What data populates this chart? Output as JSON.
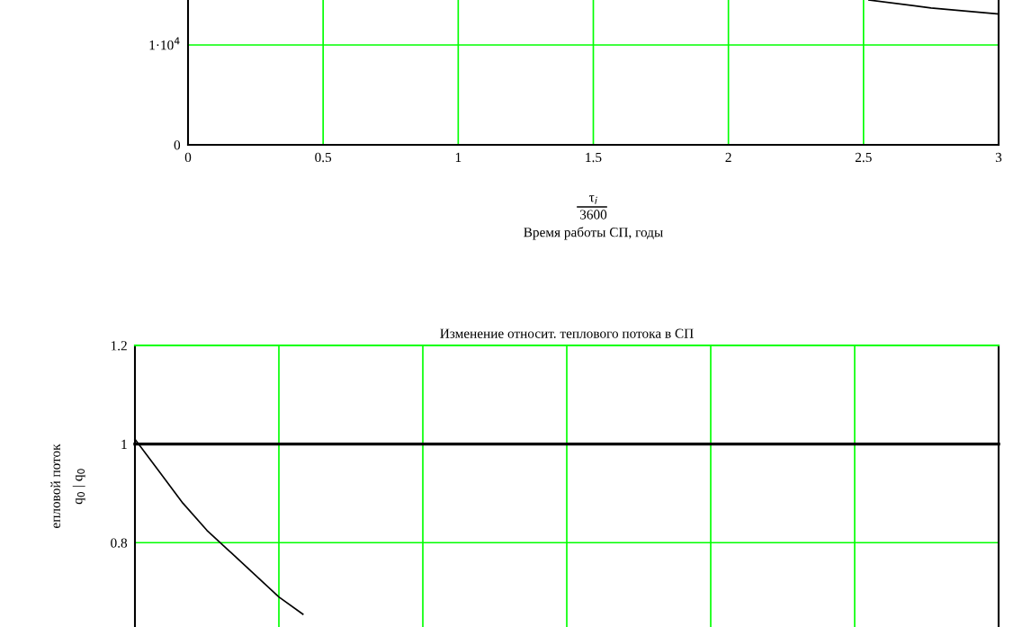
{
  "chart_data": [
    {
      "type": "line",
      "xlabel": "τ$_{i}$\n3600\nВремя работы СП, годы",
      "x": [
        2.52,
        2.75,
        3
      ],
      "values": [
        14500,
        13700,
        13100
      ],
      "color": "#000000",
      "xlim": [
        0,
        3
      ],
      "xticks": [
        0,
        0.5,
        1,
        1.5,
        2,
        2.5,
        3
      ],
      "ylim": [
        0,
        14500
      ],
      "yticks": [
        0,
        {
          "value": 10000,
          "label": "1·10$^{4}$"
        }
      ],
      "grid": true,
      "line_style": "solid"
    },
    {
      "type": "line",
      "title": "Изменение относит. теплового потока в СП",
      "ylabel": "епловой поток\nq$_{0}$ | q$_{0}$",
      "series": [
        {
          "color": "#000000",
          "values": [
            1,
            1,
            1,
            1,
            1,
            1,
            1,
            1,
            1,
            1,
            1,
            1,
            1,
            1,
            1,
            1,
            1,
            1,
            1,
            1,
            1,
            1,
            1,
            1,
            1,
            1,
            1,
            1,
            1,
            1,
            1,
            1,
            1,
            1,
            1,
            1,
            1
          ]
        },
        {
          "color": "#000000",
          "values": [
            1.01,
            0.945,
            0.88,
            0.825,
            0.78,
            0.735,
            0.69,
            0.655,
            null,
            null,
            null,
            null,
            null,
            null,
            null,
            null,
            null,
            null,
            null,
            null,
            null,
            null,
            null,
            null,
            null,
            null,
            null,
            null,
            null,
            null,
            null,
            null,
            null,
            null,
            null,
            null,
            null
          ]
        }
      ],
      "categories": [
        null,
        null,
        null,
        null,
        null,
        null,
        null,
        null,
        null,
        null,
        null,
        null,
        null,
        null,
        null,
        null,
        null,
        null,
        null,
        null,
        null,
        null,
        null,
        null,
        null,
        null,
        null,
        null,
        null,
        null,
        null,
        null,
        null,
        null,
        null,
        null,
        null
      ],
      "ylim": [
        0.629,
        1.2
      ],
      "yticks": [
        0.8,
        1,
        1.2
      ],
      "grid": true,
      "line_style": "solid"
    }
  ]
}
